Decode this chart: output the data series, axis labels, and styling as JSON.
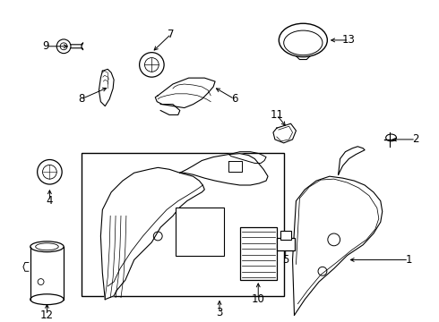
{
  "bg_color": "#ffffff",
  "fig_w": 4.9,
  "fig_h": 3.6,
  "dpi": 100
}
